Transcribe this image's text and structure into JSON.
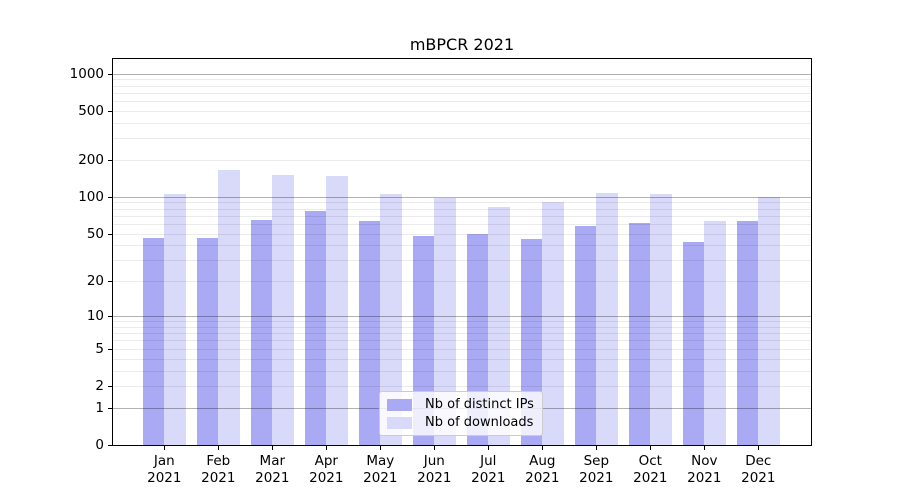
{
  "chart_data": {
    "type": "bar",
    "title": "mBPCR 2021",
    "categories": [
      "Jan 2021",
      "Feb 2021",
      "Mar 2021",
      "Apr 2021",
      "May 2021",
      "Jun 2021",
      "Jul 2021",
      "Aug 2021",
      "Sep 2021",
      "Oct 2021",
      "Nov 2021",
      "Dec 2021"
    ],
    "series": [
      {
        "name": "Nb of distinct IPs",
        "color": "#a9a9f4",
        "values": [
          46,
          46,
          65,
          76,
          64,
          48,
          50,
          45,
          58,
          61,
          43,
          63
        ]
      },
      {
        "name": "Nb of downloads",
        "color": "#d9d9fa",
        "values": [
          105,
          165,
          152,
          147,
          106,
          98,
          83,
          91,
          108,
          106,
          64,
          100
        ]
      }
    ],
    "xlabel": "",
    "ylabel": "",
    "yscale": "log10(value+1)",
    "ylim": [
      0,
      1310
    ],
    "yticks": [
      0,
      1,
      2,
      5,
      10,
      20,
      50,
      100,
      200,
      500,
      1000
    ],
    "minor_gridlines": [
      3,
      4,
      6,
      7,
      8,
      9,
      30,
      40,
      60,
      70,
      80,
      90,
      300,
      400,
      600,
      700,
      800,
      900
    ],
    "grid": "horizontal",
    "legend_position": "lower center",
    "style": {
      "axis_color": "#000000",
      "text_color": "#000000",
      "grid_major_color": "rgba(0,0,0,0.30)",
      "grid_minor_color": "rgba(0,0,0,0.08)",
      "legend_border": "#cccccc",
      "legend_background": "rgba(255,255,255,0.8)"
    }
  }
}
